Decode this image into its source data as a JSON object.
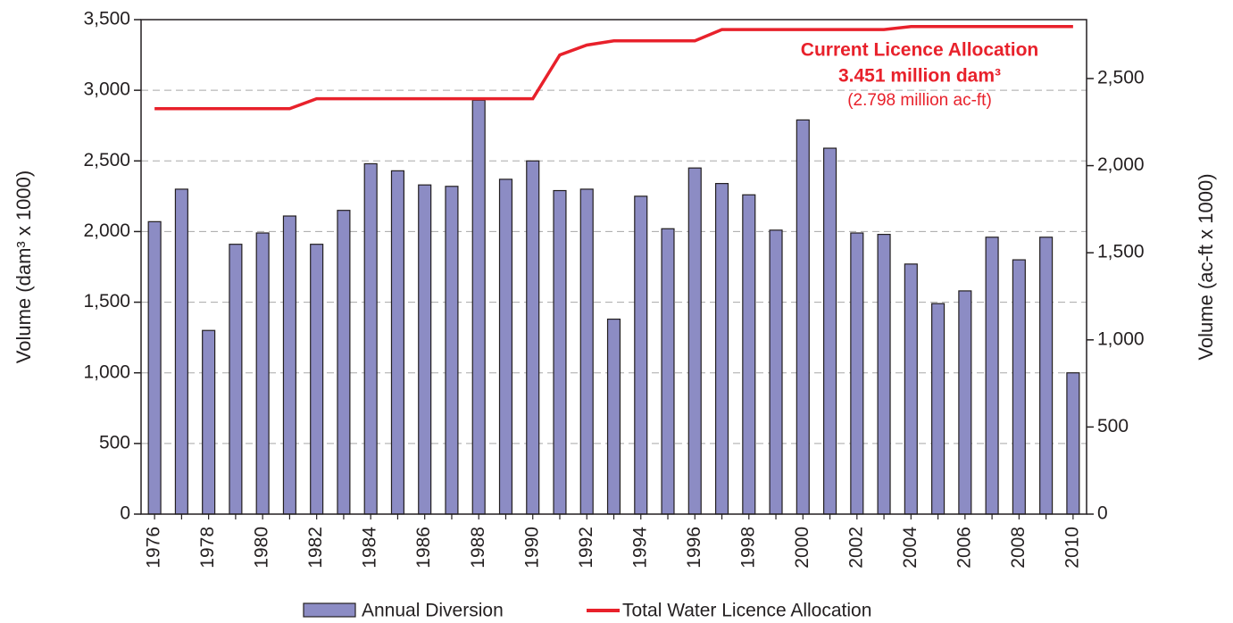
{
  "chart_data": {
    "type": "bar-line",
    "y_label": "Volume (dam³ x 1000)",
    "y2_label": "Volume (ac-ft x 1000)",
    "categories": [
      "1976",
      null,
      "1978",
      null,
      "1980",
      null,
      "1982",
      null,
      "1984",
      null,
      "1986",
      null,
      "1988",
      null,
      "1990",
      null,
      "1992",
      null,
      "1994",
      null,
      "1996",
      null,
      "1998",
      null,
      "2000",
      null,
      "2002",
      null,
      "2004",
      null,
      "2006",
      null,
      "2008",
      null,
      "2010"
    ],
    "series": [
      {
        "name": "Annual Diversion",
        "type": "bar",
        "color": "#8c8cc4",
        "values": [
          2070,
          2300,
          1300,
          1910,
          1990,
          2110,
          1910,
          2150,
          2480,
          2430,
          2330,
          2320,
          2930,
          2370,
          2500,
          2290,
          2300,
          1380,
          2250,
          2020,
          2450,
          2340,
          2260,
          2010,
          2790,
          2590,
          1990,
          1980,
          1770,
          1490,
          1580,
          1960,
          1800,
          1960,
          1000
        ]
      },
      {
        "name": "Total Water Licence Allocation",
        "type": "line",
        "color": "#e8212b",
        "values": [
          2870,
          2870,
          2870,
          2870,
          2870,
          2870,
          2940,
          2940,
          2940,
          2940,
          2940,
          2940,
          2940,
          2940,
          2940,
          3250,
          3320,
          3350,
          3350,
          3350,
          3350,
          3430,
          3430,
          3430,
          3430,
          3430,
          3430,
          3430,
          3451,
          3451,
          3451,
          3451,
          3451,
          3451,
          3451
        ]
      }
    ],
    "ylim": [
      0,
      3500
    ],
    "yticks": [
      0,
      500,
      {
        "value": 1000,
        "label": "1,000"
      },
      {
        "value": 1500,
        "label": "1,500"
      },
      {
        "value": 2000,
        "label": "2,000"
      },
      {
        "value": 2500,
        "label": "2,500"
      },
      {
        "value": 3000,
        "label": "3,000"
      },
      {
        "value": 3500,
        "label": "3,500"
      }
    ],
    "y2lim": [
      0,
      2838
    ],
    "y2ticks": [
      0,
      500,
      {
        "value": 1000,
        "label": "1,000"
      },
      {
        "value": 1500,
        "label": "1,500"
      },
      {
        "value": 2000,
        "label": "2,000"
      },
      {
        "value": 2500,
        "label": "2,500"
      }
    ],
    "grid": true,
    "legend": "bottom",
    "annotations": [
      "Current Licence Allocation",
      "3.451 million dam³",
      "(2.798 million ac-ft)"
    ]
  }
}
